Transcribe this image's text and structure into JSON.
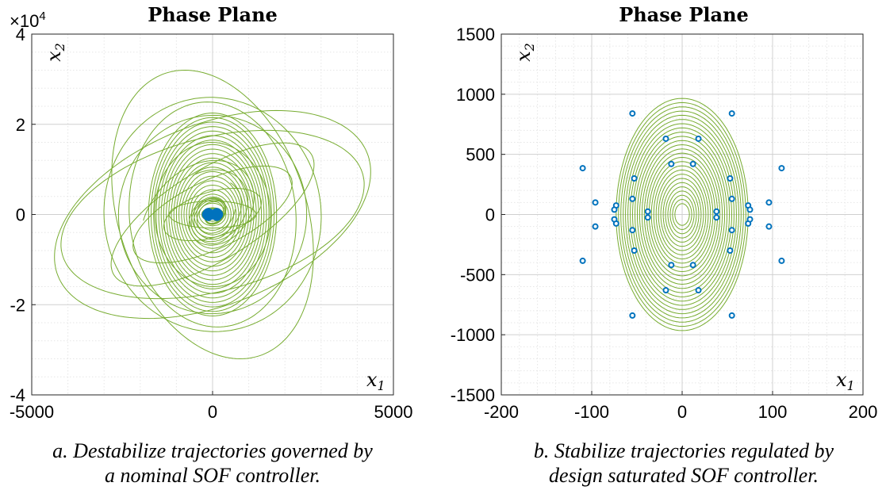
{
  "chart_data": [
    {
      "type": "line",
      "title": "Phase Plane",
      "xlabel": "x",
      "xlabel_sub": "1",
      "ylabel": "x",
      "ylabel_sub": "2",
      "xlim": [
        -5000,
        5000
      ],
      "ylim": [
        -40000,
        40000
      ],
      "xticks": [
        -5000,
        0,
        5000
      ],
      "xtick_labels": [
        "-5000",
        "0",
        "5000"
      ],
      "yticks": [
        -40000,
        -20000,
        0,
        20000,
        40000
      ],
      "ytick_labels": [
        "-4",
        "-2",
        "0",
        "2",
        "4"
      ],
      "y_exponent_prefix": "×10",
      "y_exponent": "4",
      "grid": true,
      "minor_grid": true,
      "line_color": "#77ac30",
      "marker_color": "#0072bd",
      "trajectories_description": "diverging spiral trajectories",
      "initial_points": [
        {
          "x": -150,
          "y": 0
        },
        {
          "x": -100,
          "y": 0
        },
        {
          "x": -50,
          "y": 0
        },
        {
          "x": 50,
          "y": 0
        },
        {
          "x": 100,
          "y": 0
        },
        {
          "x": 150,
          "y": 0
        },
        {
          "x": -120,
          "y": 300
        },
        {
          "x": 120,
          "y": 300
        },
        {
          "x": -120,
          "y": -300
        },
        {
          "x": 120,
          "y": -300
        }
      ],
      "caption_lines": [
        "a. Destabilize trajectories governed by",
        "a nominal SOF controller."
      ]
    },
    {
      "type": "line",
      "title": "Phase Plane",
      "xlabel": "x",
      "xlabel_sub": "1",
      "ylabel": "x",
      "ylabel_sub": "2",
      "xlim": [
        -200,
        200
      ],
      "ylim": [
        -1500,
        1500
      ],
      "xticks": [
        -200,
        -100,
        0,
        100,
        200
      ],
      "xtick_labels": [
        "-200",
        "-100",
        "0",
        "100",
        "200"
      ],
      "yticks": [
        -1500,
        -1000,
        -500,
        0,
        500,
        1000,
        1500
      ],
      "ytick_labels": [
        "-1500",
        "-1000",
        "-500",
        "0",
        "500",
        "1000",
        "1500"
      ],
      "grid": true,
      "minor_grid": true,
      "line_color": "#77ac30",
      "marker_color": "#0072bd",
      "initial_points": [
        {
          "x": -110,
          "y": 385
        },
        {
          "x": -110,
          "y": -385
        },
        {
          "x": 110,
          "y": 385
        },
        {
          "x": 110,
          "y": -385
        },
        {
          "x": -96,
          "y": 100
        },
        {
          "x": -96,
          "y": -100
        },
        {
          "x": 96,
          "y": 100
        },
        {
          "x": 96,
          "y": -100
        },
        {
          "x": -55,
          "y": 840
        },
        {
          "x": 55,
          "y": 840
        },
        {
          "x": -55,
          "y": -840
        },
        {
          "x": 55,
          "y": -840
        },
        {
          "x": -18,
          "y": 630
        },
        {
          "x": 18,
          "y": 630
        },
        {
          "x": -18,
          "y": -630
        },
        {
          "x": 18,
          "y": -630
        },
        {
          "x": -12,
          "y": 420
        },
        {
          "x": 12,
          "y": 420
        },
        {
          "x": -12,
          "y": -420
        },
        {
          "x": 12,
          "y": -420
        },
        {
          "x": -53,
          "y": 300
        },
        {
          "x": 53,
          "y": 300
        },
        {
          "x": -53,
          "y": -300
        },
        {
          "x": 53,
          "y": -300
        },
        {
          "x": -55,
          "y": 130
        },
        {
          "x": 55,
          "y": 130
        },
        {
          "x": -55,
          "y": -130
        },
        {
          "x": 55,
          "y": -130
        },
        {
          "x": -73,
          "y": 75
        },
        {
          "x": 73,
          "y": 75
        },
        {
          "x": -73,
          "y": -75
        },
        {
          "x": 73,
          "y": -75
        },
        {
          "x": -75,
          "y": 40
        },
        {
          "x": 75,
          "y": 40
        },
        {
          "x": -75,
          "y": -40
        },
        {
          "x": 75,
          "y": -40
        },
        {
          "x": -38,
          "y": 25
        },
        {
          "x": 38,
          "y": 25
        },
        {
          "x": -38,
          "y": -25
        },
        {
          "x": 38,
          "y": -25
        }
      ],
      "caption_lines": [
        "b. Stabilize trajectories regulated by",
        "design saturated SOF controller."
      ]
    }
  ]
}
